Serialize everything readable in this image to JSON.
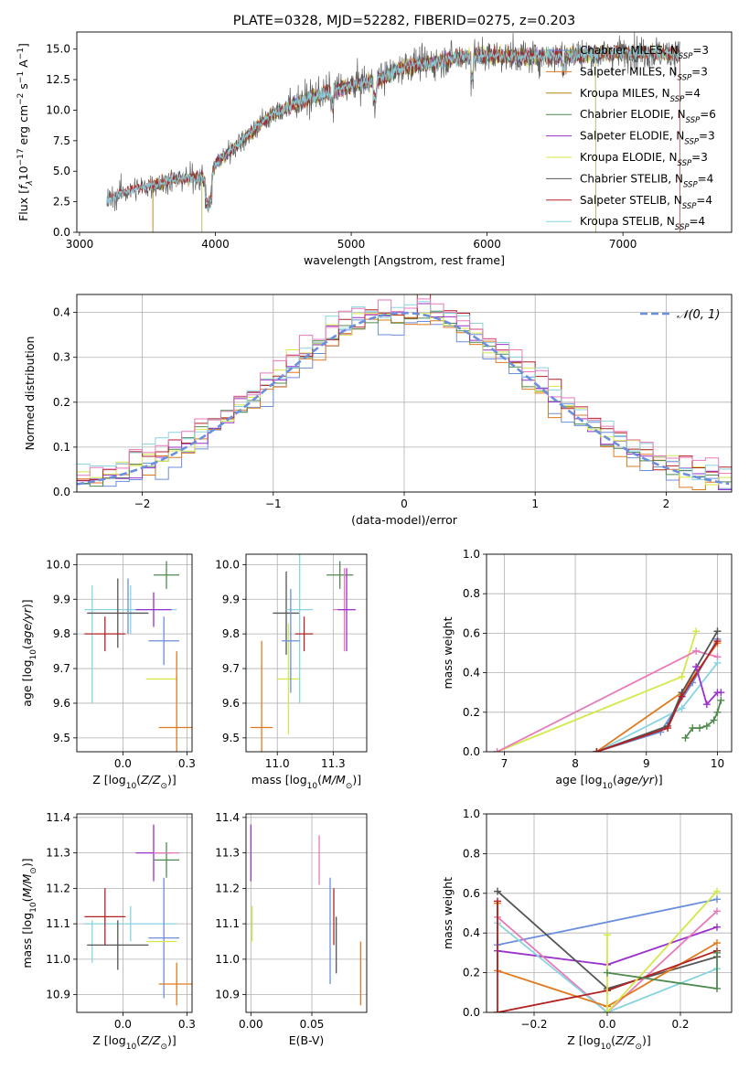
{
  "colors": {
    "chabrier_miles": "#6b8fdc",
    "salpeter_miles": "#e07a1f",
    "kroupa_miles": "#b8860b",
    "chabrier_elodie": "#4f8a4f",
    "salpeter_elodie": "#9932cc",
    "kroupa_elodie": "#d4e84a",
    "chabrier_stelib": "#555555",
    "salpeter_stelib": "#b22222",
    "kroupa_stelib": "#87d4e0",
    "pink": "#e87ab8",
    "grid": "#b0b0b0"
  },
  "chart_data": [
    {
      "id": "spectrum",
      "type": "line",
      "title": "PLATE=0328, MJD=52282, FIBERID=0275, z=0.203",
      "xlabel": "wavelength [Angstrom, rest frame]",
      "ylabel_parts": [
        "Flux [",
        "f",
        "λ",
        "10",
        "−17",
        " erg cm",
        "−2",
        " s",
        "−1",
        " A",
        "−1",
        "]"
      ],
      "xlim": [
        2980,
        7800
      ],
      "ylim": [
        0,
        16.4
      ],
      "xticks": [
        3000,
        4000,
        5000,
        6000,
        7000
      ],
      "yticks": [
        0.0,
        2.5,
        5.0,
        7.5,
        10.0,
        12.5,
        15.0
      ],
      "grid": false,
      "legend_position": "top-right",
      "legend": [
        {
          "base": "Chabrier MILES, N",
          "sub": "SSP",
          "tail": "=3",
          "color": "chabrier_miles"
        },
        {
          "base": "Salpeter MILES, N",
          "sub": "SSP",
          "tail": "=3",
          "color": "salpeter_miles"
        },
        {
          "base": "Kroupa MILES, N",
          "sub": "SSP",
          "tail": "=4",
          "color": "kroupa_miles"
        },
        {
          "base": "Chabrier ELODIE, N",
          "sub": "SSP",
          "tail": "=6",
          "color": "chabrier_elodie"
        },
        {
          "base": "Salpeter ELODIE, N",
          "sub": "SSP",
          "tail": "=3",
          "color": "salpeter_elodie"
        },
        {
          "base": "Kroupa ELODIE, N",
          "sub": "SSP",
          "tail": "=3",
          "color": "kroupa_elodie"
        },
        {
          "base": "Chabrier STELIB, N",
          "sub": "SSP",
          "tail": "=4",
          "color": "chabrier_stelib"
        },
        {
          "base": "Salpeter STELIB, N",
          "sub": "SSP",
          "tail": "=4",
          "color": "salpeter_stelib"
        },
        {
          "base": "Kroupa STELIB, N",
          "sub": "SSP",
          "tail": "=4",
          "color": "kroupa_stelib"
        }
      ],
      "continuum": {
        "x": [
          3200,
          3300,
          3500,
          3700,
          3900,
          3950,
          4000,
          4200,
          4400,
          4600,
          4800,
          5000,
          5200,
          5400,
          5600,
          5800,
          6000,
          6200,
          6400,
          6600,
          6800,
          7000,
          7200,
          7400
        ],
        "y": [
          2.5,
          3.2,
          3.8,
          4.3,
          4.6,
          3.6,
          5.6,
          7.6,
          9.5,
          10.6,
          11.4,
          12.0,
          12.5,
          13.6,
          13.9,
          14.3,
          14.5,
          14.4,
          14.4,
          14.5,
          14.6,
          14.7,
          14.7,
          14.6
        ]
      },
      "model_ranges": [
        {
          "color": "chabrier_miles",
          "start": 3540
        },
        {
          "color": "salpeter_miles",
          "start": 3540
        },
        {
          "color": "kroupa_miles",
          "start": 3540
        },
        {
          "color": "chabrier_elodie",
          "start": 3900,
          "end": 6800
        },
        {
          "color": "salpeter_elodie",
          "start": 3900,
          "end": 6800
        },
        {
          "color": "kroupa_elodie",
          "start": 3900,
          "end": 6800
        },
        {
          "color": "chabrier_stelib",
          "start": 3200
        },
        {
          "color": "salpeter_stelib",
          "start": 3200,
          "end": 7420
        },
        {
          "color": "kroupa_stelib",
          "start": 3200
        }
      ]
    },
    {
      "id": "residuals",
      "type": "histogram",
      "xlabel": "(data-model)/error",
      "ylabel": "Normed distribution",
      "xlim": [
        -2.5,
        2.5
      ],
      "ylim": [
        0,
        0.44
      ],
      "xticks": [
        -2,
        -1,
        0,
        1,
        2
      ],
      "yticks": [
        0.0,
        0.1,
        0.2,
        0.3,
        0.4
      ],
      "grid": true,
      "legend_position": "top-right",
      "legend": [
        {
          "label": "𝒩(0, 1)",
          "color": "chabrier_miles",
          "style": "dashed"
        }
      ],
      "bin_width": 0.1,
      "series_colors": [
        "chabrier_miles",
        "salpeter_miles",
        "chabrier_elodie",
        "salpeter_elodie",
        "kroupa_elodie",
        "salpeter_stelib",
        "kroupa_stelib",
        "pink"
      ],
      "reference_curve": "normal(0,1)"
    },
    {
      "id": "age-vs-Z",
      "type": "errorbar",
      "xlabel": "Z [log10(Z/Z⊙)]",
      "ylabel": "age [log10(age/yr)]",
      "xlim": [
        -0.18,
        0.27
      ],
      "ylim": [
        9.46,
        10.03
      ],
      "xticks": [
        0.0,
        0.25
      ],
      "yticks": [
        9.5,
        9.6,
        9.7,
        9.8,
        9.9,
        10.0
      ],
      "grid": true,
      "points": [
        {
          "color": "kroupa_stelib",
          "x": 0.03,
          "xerr": 0.18,
          "y": 9.87,
          "yerr": 0.07
        },
        {
          "color": "kroupa_stelib",
          "x": -0.12,
          "y": 9.77,
          "yerr": 0.17
        },
        {
          "color": "chabrier_stelib",
          "x": -0.02,
          "xerr": 0.12,
          "y": 9.86,
          "yerr": 0.1
        },
        {
          "color": "salpeter_stelib",
          "x": -0.07,
          "xerr": 0.08,
          "y": 9.8,
          "yerr": 0.05
        },
        {
          "color": "chabrier_miles",
          "x": 0.16,
          "xerr": 0.06,
          "y": 9.78,
          "yerr": 0.07
        },
        {
          "color": "chabrier_miles",
          "x": 0.02,
          "y": 9.88,
          "yerr": 0.08
        },
        {
          "color": "salpeter_elodie",
          "x": 0.12,
          "xerr": 0.07,
          "y": 9.87,
          "yerr": 0.05
        },
        {
          "color": "chabrier_elodie",
          "x": 0.17,
          "xerr": 0.05,
          "y": 9.97,
          "yerr": 0.04
        },
        {
          "color": "kroupa_elodie",
          "x": 0.15,
          "xerr": 0.06,
          "y": 9.67
        },
        {
          "color": "salpeter_miles",
          "x": 0.21,
          "xerr": 0.07,
          "y": 9.53,
          "yerr": 0.22
        }
      ]
    },
    {
      "id": "age-vs-mass",
      "type": "errorbar",
      "xlabel": "mass [log10(M/M⊙)]",
      "ylabel": "",
      "xlim": [
        10.86,
        11.4
      ],
      "ylim": [
        9.46,
        10.03
      ],
      "xticks": [
        11.0,
        11.25
      ],
      "yticks": [
        9.5,
        9.6,
        9.7,
        9.8,
        9.9,
        10.0
      ],
      "grid": true,
      "points": [
        {
          "color": "salpeter_miles",
          "x": 10.93,
          "xerr": 0.05,
          "y": 9.53,
          "yerr": 0.25
        },
        {
          "color": "kroupa_elodie",
          "x": 11.05,
          "xerr": 0.05,
          "y": 9.67,
          "yerr": 0.16
        },
        {
          "color": "chabrier_stelib",
          "x": 11.04,
          "xerr": 0.06,
          "y": 9.86,
          "yerr": 0.12
        },
        {
          "color": "kroupa_stelib",
          "x": 11.1,
          "xerr": 0.06,
          "y": 9.87,
          "yerr": 0.27
        },
        {
          "color": "chabrier_miles",
          "x": 11.06,
          "xerr": 0.04,
          "y": 9.78,
          "yerr": 0.15
        },
        {
          "color": "salpeter_stelib",
          "x": 11.12,
          "xerr": 0.04,
          "y": 9.8,
          "yerr": 0.05
        },
        {
          "color": "chabrier_elodie",
          "x": 11.28,
          "xerr": 0.06,
          "y": 9.97,
          "yerr": 0.04
        },
        {
          "color": "pink",
          "x": 11.3,
          "xerr": 0.05,
          "y": 9.87,
          "yerr": 0.12
        },
        {
          "color": "salpeter_elodie",
          "x": 11.31,
          "xerr": 0.04,
          "y": 9.87,
          "yerr": 0.12
        }
      ]
    },
    {
      "id": "mass-weight-vs-age",
      "type": "line",
      "xlabel": "age [log10(age/yr)]",
      "ylabel": "mass weight",
      "xlim": [
        6.75,
        10.2
      ],
      "ylim": [
        0,
        1.0
      ],
      "xticks": [
        7,
        8,
        9,
        10
      ],
      "yticks": [
        0.0,
        0.2,
        0.4,
        0.6,
        0.8,
        1.0
      ],
      "grid": true,
      "series": [
        {
          "color": "kroupa_elodie",
          "x": [
            6.9,
            9.5,
            9.7
          ],
          "y": [
            0.0,
            0.38,
            0.61
          ]
        },
        {
          "color": "pink",
          "x": [
            6.9,
            9.7,
            10.0
          ],
          "y": [
            0.0,
            0.51,
            0.48
          ]
        },
        {
          "color": "chabrier_miles",
          "x": [
            8.3,
            9.2,
            9.65,
            10.0
          ],
          "y": [
            0.0,
            0.1,
            0.35,
            0.57
          ]
        },
        {
          "color": "kroupa_stelib",
          "x": [
            8.3,
            9.5,
            10.0
          ],
          "y": [
            0.0,
            0.22,
            0.45
          ]
        },
        {
          "color": "salpeter_miles",
          "x": [
            8.3,
            9.5,
            9.7,
            10.0
          ],
          "y": [
            0.0,
            0.3,
            0.4,
            0.55
          ]
        },
        {
          "color": "chabrier_stelib",
          "x": [
            8.3,
            9.3,
            9.5,
            10.0
          ],
          "y": [
            0.0,
            0.13,
            0.3,
            0.61
          ]
        },
        {
          "color": "salpeter_stelib",
          "x": [
            8.3,
            9.3,
            9.5,
            10.0
          ],
          "y": [
            0.0,
            0.12,
            0.28,
            0.56
          ]
        },
        {
          "color": "salpeter_elodie",
          "x": [
            9.7,
            9.85,
            10.0,
            10.05
          ],
          "y": [
            0.43,
            0.24,
            0.3,
            0.3
          ]
        },
        {
          "color": "chabrier_elodie",
          "x": [
            9.55,
            9.65,
            9.75,
            9.85,
            9.95,
            10.0,
            10.05
          ],
          "y": [
            0.07,
            0.12,
            0.12,
            0.13,
            0.16,
            0.2,
            0.26
          ]
        }
      ]
    },
    {
      "id": "mass-vs-Z",
      "type": "errorbar",
      "xlabel": "Z [log10(Z/Z⊙)]",
      "ylabel": "mass [log10(M/M⊙)]",
      "xlim": [
        -0.18,
        0.27
      ],
      "ylim": [
        10.85,
        11.41
      ],
      "xticks": [
        0.0,
        0.25
      ],
      "yticks": [
        10.9,
        11.0,
        11.1,
        11.2,
        11.3,
        11.4
      ],
      "grid": true,
      "points": [
        {
          "color": "kroupa_stelib",
          "x": 0.03,
          "xerr": 0.18,
          "y": 11.1,
          "yerr": 0.05
        },
        {
          "color": "kroupa_stelib",
          "x": -0.12,
          "y": 11.05,
          "yerr": 0.06
        },
        {
          "color": "chabrier_stelib",
          "x": -0.02,
          "xerr": 0.12,
          "y": 11.04,
          "yerr": 0.07
        },
        {
          "color": "salpeter_stelib",
          "x": -0.07,
          "xerr": 0.08,
          "y": 11.12,
          "yerr": 0.08
        },
        {
          "color": "chabrier_miles",
          "x": 0.16,
          "xerr": 0.06,
          "y": 11.06,
          "yerr": 0.17
        },
        {
          "color": "salpeter_elodie",
          "x": 0.12,
          "xerr": 0.07,
          "y": 11.3,
          "yerr": 0.08
        },
        {
          "color": "chabrier_elodie",
          "x": 0.17,
          "xerr": 0.05,
          "y": 11.28,
          "yerr": 0.05
        },
        {
          "color": "pink",
          "x": 0.17,
          "xerr": 0.05,
          "y": 11.3
        },
        {
          "color": "kroupa_elodie",
          "x": 0.15,
          "xerr": 0.06,
          "y": 11.05
        },
        {
          "color": "salpeter_miles",
          "x": 0.21,
          "xerr": 0.07,
          "y": 10.93,
          "yerr": 0.06
        }
      ]
    },
    {
      "id": "mass-vs-EBV",
      "type": "errorbar",
      "xlabel": "E(B-V)",
      "ylabel": "",
      "xlim": [
        -0.004,
        0.095
      ],
      "ylim": [
        10.85,
        11.41
      ],
      "xticks": [
        0.0,
        0.05
      ],
      "yticks": [
        10.9,
        11.0,
        11.1,
        11.2,
        11.3,
        11.4
      ],
      "grid": true,
      "points": [
        {
          "color": "salpeter_elodie",
          "x": 0.0,
          "y": 11.3,
          "yerr": 0.08
        },
        {
          "color": "kroupa_elodie",
          "x": 0.001,
          "y": 11.1,
          "yerr": 0.05
        },
        {
          "color": "pink",
          "x": 0.056,
          "y": 11.28,
          "yerr": 0.07
        },
        {
          "color": "chabrier_miles",
          "x": 0.065,
          "y": 11.08,
          "yerr": 0.15
        },
        {
          "color": "salpeter_stelib",
          "x": 0.068,
          "y": 11.12,
          "yerr": 0.08
        },
        {
          "color": "chabrier_stelib",
          "x": 0.07,
          "y": 11.04,
          "yerr": 0.08
        },
        {
          "color": "salpeter_miles",
          "x": 0.09,
          "y": 10.96,
          "yerr": 0.09
        }
      ]
    },
    {
      "id": "mass-weight-vs-Z",
      "type": "line",
      "xlabel": "Z [log10(Z/Z⊙)]",
      "ylabel": "mass weight",
      "xlim": [
        -0.33,
        0.34
      ],
      "ylim": [
        0,
        1.0
      ],
      "xticks": [
        -0.2,
        0.0,
        0.2
      ],
      "yticks": [
        0.0,
        0.2,
        0.4,
        0.6,
        0.8,
        1.0
      ],
      "grid": true,
      "series": [
        {
          "color": "chabrier_miles",
          "x": [
            -0.3,
            0.3
          ],
          "y": [
            0.34,
            0.57
          ]
        },
        {
          "color": "salpeter_elodie",
          "x": [
            -0.3,
            0.0,
            0.3
          ],
          "y": [
            0.31,
            0.24,
            0.43
          ]
        },
        {
          "color": "chabrier_stelib",
          "x": [
            -0.3,
            0.0,
            0.3
          ],
          "y": [
            0.61,
            0.12,
            0.28
          ]
        },
        {
          "color": "pink",
          "x": [
            -0.3,
            0.0,
            0.3
          ],
          "y": [
            0.48,
            0.0,
            0.51
          ]
        },
        {
          "color": "kroupa_stelib",
          "x": [
            -0.3,
            0.0,
            0.3
          ],
          "y": [
            0.45,
            0.0,
            0.22
          ]
        },
        {
          "color": "salpeter_miles",
          "x": [
            -0.3,
            -0.3,
            0.0,
            0.3
          ],
          "y": [
            0.55,
            0.21,
            0.03,
            0.35
          ]
        },
        {
          "color": "salpeter_stelib",
          "x": [
            -0.3,
            -0.3,
            0.0,
            0.3
          ],
          "y": [
            0.56,
            0.0,
            0.11,
            0.31
          ]
        },
        {
          "color": "kroupa_elodie",
          "x": [
            0.0,
            0.0,
            0.3
          ],
          "y": [
            0.39,
            0.0,
            0.61
          ]
        },
        {
          "color": "chabrier_elodie",
          "x": [
            0.0,
            0.3,
            0.3
          ],
          "y": [
            0.2,
            0.12,
            0.3
          ]
        }
      ]
    }
  ]
}
